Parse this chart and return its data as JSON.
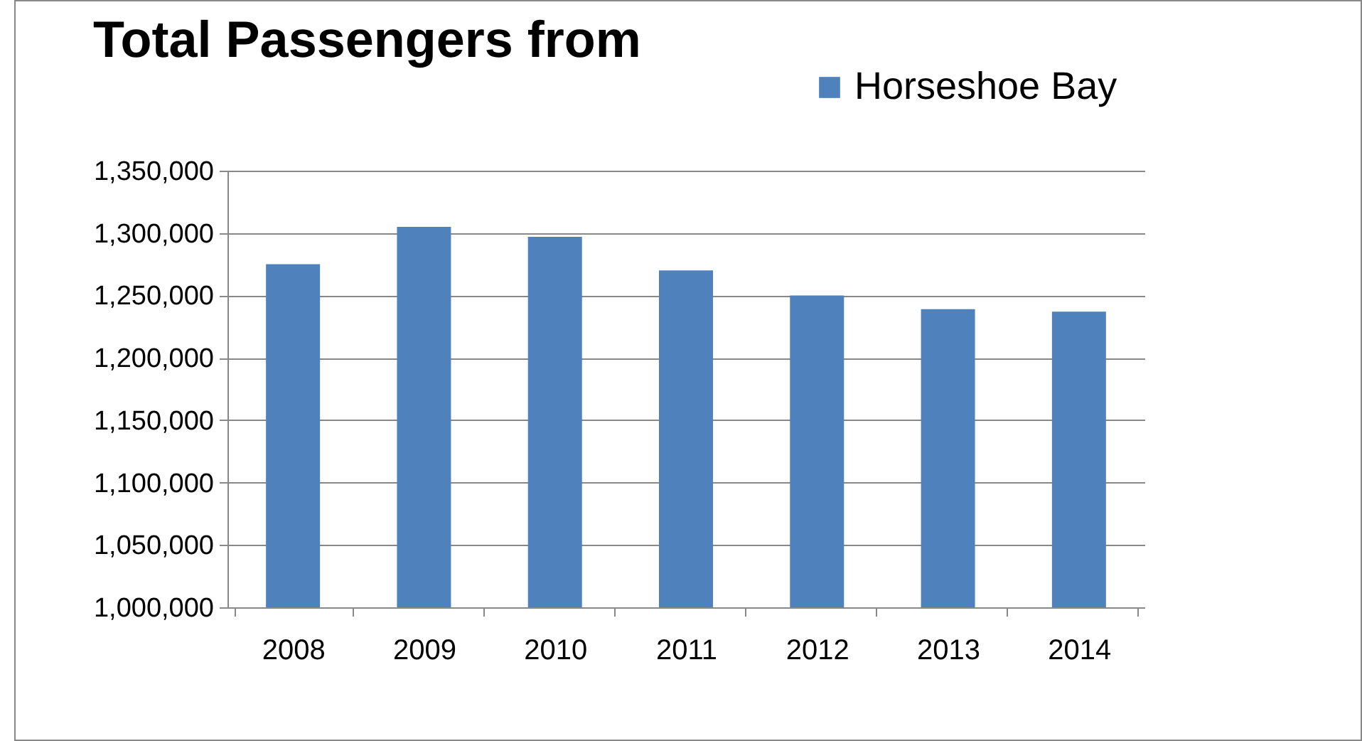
{
  "chart_data": {
    "type": "bar",
    "title": "Total Passengers from",
    "categories": [
      "2008",
      "2009",
      "2010",
      "2011",
      "2012",
      "2013",
      "2014"
    ],
    "series": [
      {
        "name": "Horseshoe Bay",
        "color": "#4f81bd",
        "values": [
          1275000,
          1305000,
          1297000,
          1270000,
          1250000,
          1239000,
          1237000
        ]
      }
    ],
    "ylim": [
      1000000,
      1350000
    ],
    "yticks": [
      {
        "value": 1000000,
        "label": "1,000,000"
      },
      {
        "value": 1050000,
        "label": "1,050,000"
      },
      {
        "value": 1100000,
        "label": "1,100,000"
      },
      {
        "value": 1150000,
        "label": "1,150,000"
      },
      {
        "value": 1200000,
        "label": "1,200,000"
      },
      {
        "value": 1250000,
        "label": "1,250,000"
      },
      {
        "value": 1300000,
        "label": "1,300,000"
      },
      {
        "value": 1350000,
        "label": "1,350,000"
      }
    ],
    "grid": "y",
    "legend": "top right"
  }
}
